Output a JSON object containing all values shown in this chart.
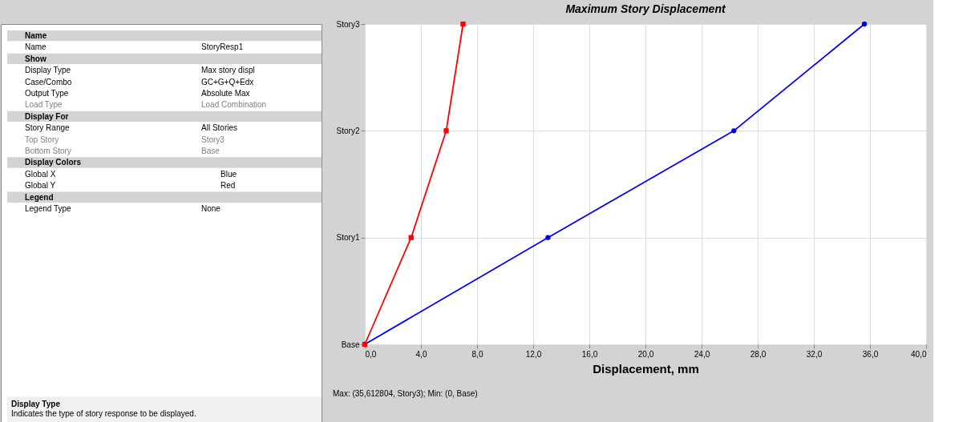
{
  "chart_data": [
    {
      "type": "other",
      "annotations": [
        "Name",
        "Name",
        "StoryResp1",
        "Show",
        "Display Type",
        "Max story displ",
        "Case/Combo",
        "GC+G+Q+Edx",
        "Output Type",
        "Absolute Max",
        "Load Type",
        "Load Combination",
        "Display For",
        "Story Range",
        "All Stories",
        "Top Story",
        "Story3",
        "Bottom Story",
        "Base",
        "Display Colors",
        "Global X",
        "Blue",
        "Global Y",
        "Red",
        "Legend",
        "Legend Type",
        "None",
        "Display Type",
        "Indicates the type of story response to be displayed."
      ]
    },
    {
      "type": "line",
      "title": "Maximum Story Displacement",
      "xlabel": "Displacement, mm",
      "orientation": "horizontal",
      "categories": [
        "Story3",
        "Story2",
        "Story1",
        "Base"
      ],
      "series": [
        {
          "color": "#0000ff",
          "marker": "circle",
          "values": [
            35.6,
            26.3,
            13.05,
            0
          ]
        },
        {
          "color": "#ff0000",
          "marker": "square",
          "values": [
            7.0,
            5.8,
            3.3,
            0
          ]
        }
      ],
      "xlim": [
        0,
        40
      ],
      "xticks": [
        {
          "value": 0,
          "label": "0,0"
        },
        {
          "value": 4,
          "label": "4,0"
        },
        {
          "value": 8,
          "label": "8,0"
        },
        {
          "value": 12,
          "label": "12,0"
        },
        {
          "value": 16,
          "label": "16,0"
        },
        {
          "value": 20,
          "label": "20,0"
        },
        {
          "value": 24,
          "label": "24,0"
        },
        {
          "value": 28,
          "label": "28,0"
        },
        {
          "value": 32,
          "label": "32,0"
        },
        {
          "value": 36,
          "label": "36,0"
        },
        {
          "value": 40,
          "label": "40,0"
        }
      ],
      "grid": true,
      "annotations": [
        "Max: (35,612804, Story3);   Min: (0, Base)"
      ]
    }
  ]
}
